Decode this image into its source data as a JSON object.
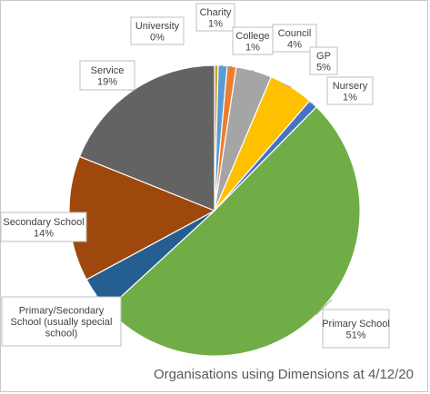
{
  "chart_data": {
    "type": "pie",
    "title": "Organisations using Dimensions at 4/12/20",
    "legend": "none",
    "slices": [
      {
        "label": "University",
        "label_lines": [
          "University"
        ],
        "value_label": "0%",
        "value": 0.4,
        "color": "#c9a227"
      },
      {
        "label": "Charity",
        "label_lines": [
          "Charity"
        ],
        "value_label": "1%",
        "value": 1,
        "color": "#5b9bd5"
      },
      {
        "label": "College",
        "label_lines": [
          "College"
        ],
        "value_label": "1%",
        "value": 1,
        "color": "#ed7d31"
      },
      {
        "label": "Council",
        "label_lines": [
          "Council"
        ],
        "value_label": "4%",
        "value": 4,
        "color": "#a5a5a5"
      },
      {
        "label": "GP",
        "label_lines": [
          "GP"
        ],
        "value_label": "5%",
        "value": 5,
        "color": "#ffc000"
      },
      {
        "label": "Nursery",
        "label_lines": [
          "Nursery"
        ],
        "value_label": "1%",
        "value": 1,
        "color": "#4472c4"
      },
      {
        "label": "Primary School",
        "label_lines": [
          "Primary School"
        ],
        "value_label": "51%",
        "value": 51,
        "color": "#70ad47"
      },
      {
        "label": "Primary/Secondary School (usually special school)",
        "label_lines": [
          "Primary/Secondary",
          "School (usually special",
          "school)"
        ],
        "value_label": "",
        "value": 4,
        "color": "#255e91"
      },
      {
        "label": "Secondary School",
        "label_lines": [
          "Secondary School"
        ],
        "value_label": "14%",
        "value": 14,
        "color": "#9e480e"
      },
      {
        "label": "Service",
        "label_lines": [
          "Service"
        ],
        "value_label": "19%",
        "value": 19,
        "color": "#636363"
      }
    ]
  }
}
